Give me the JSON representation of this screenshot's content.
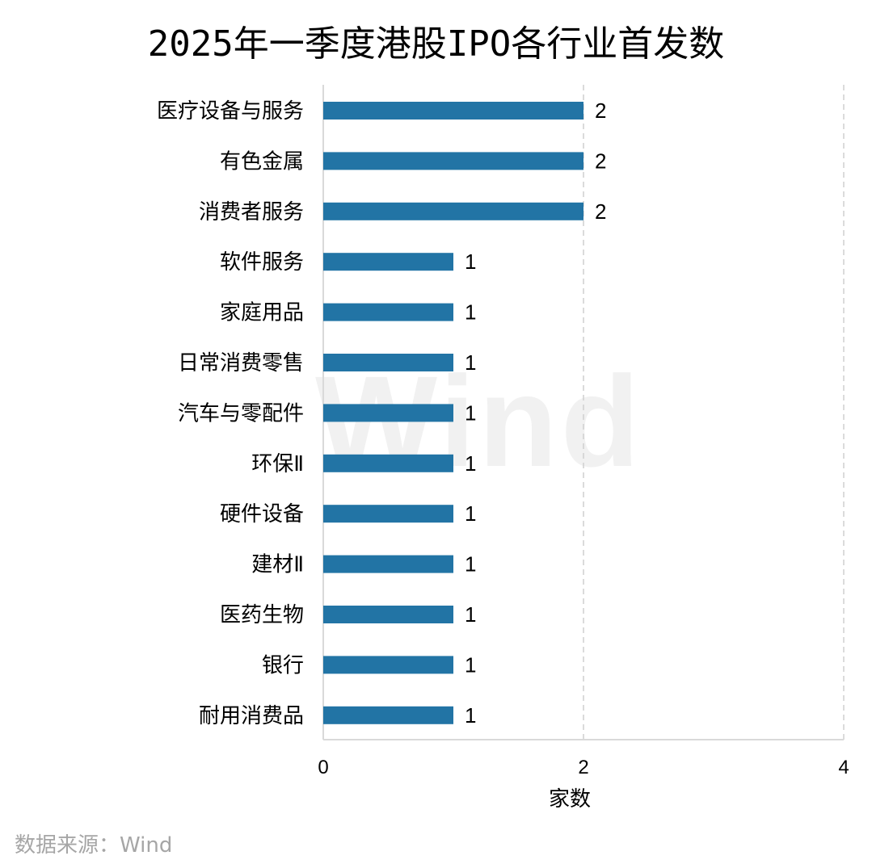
{
  "chart_data": {
    "type": "bar",
    "orientation": "horizontal",
    "title": "2025年一季度港股IPO各行业首发数",
    "xlabel": "家数",
    "ylabel": "",
    "xlim": [
      0,
      4
    ],
    "x_ticks": [
      "0",
      "2",
      "4"
    ],
    "grid": "vertical dashed",
    "categories": [
      "医疗设备与服务",
      "有色金属",
      "消费者服务",
      "软件服务",
      "家庭用品",
      "日常消费零售",
      "汽车与零配件",
      "环保Ⅱ",
      "硬件设备",
      "建材Ⅱ",
      "医药生物",
      "银行",
      "耐用消费品"
    ],
    "values": [
      2,
      2,
      2,
      1,
      1,
      1,
      1,
      1,
      1,
      1,
      1,
      1,
      1
    ],
    "bar_color": "#2274a5"
  },
  "watermark": "Wind",
  "source_note": "数据来源：Wind"
}
